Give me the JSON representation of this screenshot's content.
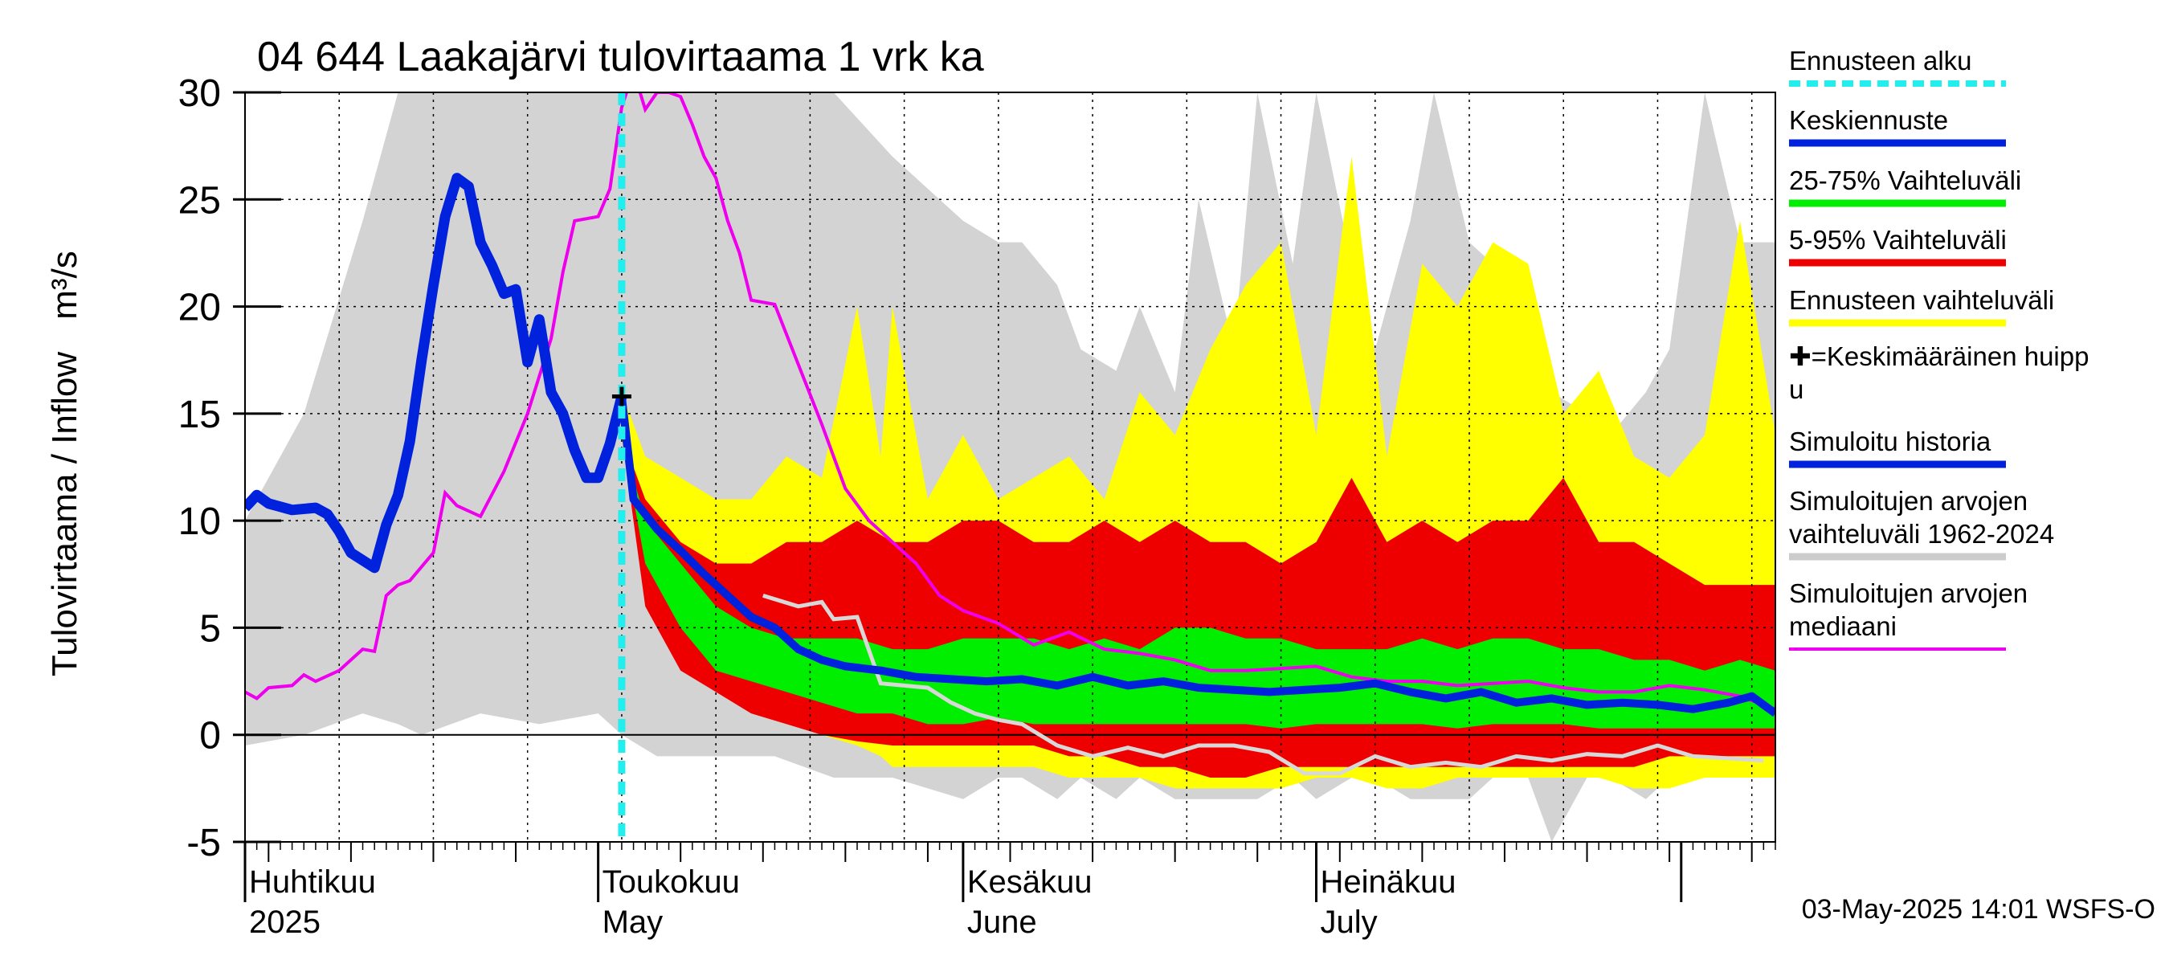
{
  "chart_data": {
    "type": "area",
    "title": "04 644 Laakajärvi tulovirtaama 1 vrk ka",
    "ylabel": "Tulovirtaama / Inflow",
    "yunit": "m³/s",
    "ylim": [
      -5,
      30
    ],
    "yticks": [
      -5,
      0,
      5,
      10,
      15,
      20,
      25,
      30
    ],
    "xlim": [
      "2025-04-01",
      "2025-08-09"
    ],
    "grid": true,
    "months": [
      {
        "fi": "Huhtikuu",
        "en": "2025",
        "start": "2025-04-01"
      },
      {
        "fi": "Toukokuu",
        "en": "May",
        "start": "2025-05-01"
      },
      {
        "fi": "Kesäkuu",
        "en": "June",
        "start": "2025-06-01"
      },
      {
        "fi": "Heinäkuu",
        "en": "July",
        "start": "2025-07-01"
      }
    ],
    "forecast_start": "2025-05-03",
    "mean_peak": {
      "date": "2025-05-03",
      "value": 15.8
    },
    "historical_range": {
      "dates": [
        "2025-04-01",
        "2025-04-06",
        "2025-04-11",
        "2025-04-14",
        "2025-04-16",
        "2025-04-21",
        "2025-04-26",
        "2025-05-01",
        "2025-05-03",
        "2025-05-06",
        "2025-05-11",
        "2025-05-16",
        "2025-05-21",
        "2025-05-26",
        "2025-06-01",
        "2025-06-04",
        "2025-06-06",
        "2025-06-09",
        "2025-06-11",
        "2025-06-14",
        "2025-06-16",
        "2025-06-19",
        "2025-06-21",
        "2025-06-24",
        "2025-06-26",
        "2025-06-29",
        "2025-07-01",
        "2025-07-04",
        "2025-07-06",
        "2025-07-09",
        "2025-07-11",
        "2025-07-14",
        "2025-07-16",
        "2025-07-19",
        "2025-07-21",
        "2025-07-24",
        "2025-07-26",
        "2025-07-29",
        "2025-07-31",
        "2025-08-03",
        "2025-08-06",
        "2025-08-09"
      ],
      "max": [
        10,
        15,
        24,
        30,
        30,
        30,
        30,
        30,
        30,
        30,
        30,
        30,
        30,
        27,
        24,
        23,
        23,
        21,
        18,
        17,
        20,
        16,
        25,
        18,
        30,
        22,
        30,
        22,
        18,
        24,
        30,
        23,
        22,
        19,
        16,
        15,
        14,
        16,
        18,
        30,
        23,
        23
      ],
      "min": [
        -0.5,
        0,
        1,
        0.5,
        0,
        1,
        0.5,
        1,
        0,
        -1,
        -1,
        -1,
        -2,
        -2,
        -3,
        -2,
        -2,
        -3,
        -2,
        -3,
        -2,
        -3,
        -3,
        -3,
        -3,
        -2,
        -3,
        -2,
        -2,
        -3,
        -3,
        -3,
        -2,
        -2,
        -5,
        -2,
        -2,
        -3,
        -2,
        -1,
        -2,
        -2
      ]
    },
    "forecast_range": {
      "dates": [
        "2025-05-03",
        "2025-05-05",
        "2025-05-08",
        "2025-05-11",
        "2025-05-14",
        "2025-05-17",
        "2025-05-20",
        "2025-05-23",
        "2025-05-25",
        "2025-05-26",
        "2025-05-29",
        "2025-06-01",
        "2025-06-04",
        "2025-06-07",
        "2025-06-10",
        "2025-06-13",
        "2025-06-16",
        "2025-06-19",
        "2025-06-22",
        "2025-06-25",
        "2025-06-28",
        "2025-07-01",
        "2025-07-04",
        "2025-07-07",
        "2025-07-10",
        "2025-07-13",
        "2025-07-16",
        "2025-07-19",
        "2025-07-22",
        "2025-07-25",
        "2025-07-28",
        "2025-07-31",
        "2025-08-03",
        "2025-08-06",
        "2025-08-09"
      ],
      "max": [
        16,
        13,
        12,
        11,
        11,
        13,
        12,
        20,
        13,
        20,
        11,
        14,
        11,
        12,
        13,
        11,
        16,
        14,
        18,
        21,
        23,
        14,
        27,
        13,
        22,
        20,
        23,
        22,
        15,
        17,
        13,
        12,
        14,
        24,
        14
      ],
      "min": [
        14,
        8,
        5,
        3,
        2,
        1,
        0,
        -0.5,
        -1,
        -1.5,
        -1.5,
        -1.5,
        -1.5,
        -1.5,
        -2,
        -2,
        -2,
        -2.5,
        -2.5,
        -2.5,
        -2.5,
        -2,
        -2,
        -2.5,
        -2.5,
        -2,
        -2,
        -2,
        -2,
        -2,
        -2.5,
        -2.5,
        -2,
        -2,
        -2
      ]
    },
    "band_5_95": {
      "dates": [
        "2025-05-03",
        "2025-05-05",
        "2025-05-08",
        "2025-05-11",
        "2025-05-14",
        "2025-05-17",
        "2025-05-20",
        "2025-05-23",
        "2025-05-26",
        "2025-05-29",
        "2025-06-01",
        "2025-06-04",
        "2025-06-07",
        "2025-06-10",
        "2025-06-13",
        "2025-06-16",
        "2025-06-19",
        "2025-06-22",
        "2025-06-25",
        "2025-06-28",
        "2025-07-01",
        "2025-07-04",
        "2025-07-07",
        "2025-07-10",
        "2025-07-13",
        "2025-07-16",
        "2025-07-19",
        "2025-07-22",
        "2025-07-25",
        "2025-07-28",
        "2025-07-31",
        "2025-08-03",
        "2025-08-06",
        "2025-08-09"
      ],
      "p95": [
        14,
        11,
        9,
        8,
        8,
        9,
        9,
        10,
        9,
        9,
        10,
        10,
        9,
        9,
        10,
        9,
        10,
        9,
        9,
        8,
        9,
        12,
        9,
        10,
        9,
        10,
        10,
        12,
        9,
        9,
        8,
        7,
        7,
        7
      ],
      "p05": [
        14,
        6,
        3,
        2,
        1,
        0.5,
        0,
        -0.3,
        -0.5,
        -0.5,
        -0.5,
        -0.5,
        -0.5,
        -1,
        -1,
        -1.5,
        -1.5,
        -2,
        -2,
        -1.5,
        -1.5,
        -1.5,
        -1.5,
        -1.5,
        -1.5,
        -1.5,
        -1.5,
        -1.5,
        -1.5,
        -1.5,
        -1,
        -1,
        -1,
        -1
      ]
    },
    "band_25_75": {
      "dates": [
        "2025-05-03",
        "2025-05-05",
        "2025-05-08",
        "2025-05-11",
        "2025-05-14",
        "2025-05-17",
        "2025-05-20",
        "2025-05-23",
        "2025-05-26",
        "2025-05-29",
        "2025-06-01",
        "2025-06-04",
        "2025-06-07",
        "2025-06-10",
        "2025-06-13",
        "2025-06-16",
        "2025-06-19",
        "2025-06-22",
        "2025-06-25",
        "2025-06-28",
        "2025-07-01",
        "2025-07-04",
        "2025-07-07",
        "2025-07-10",
        "2025-07-13",
        "2025-07-16",
        "2025-07-19",
        "2025-07-22",
        "2025-07-25",
        "2025-07-28",
        "2025-07-31",
        "2025-08-03",
        "2025-08-06",
        "2025-08-09"
      ],
      "p75": [
        14,
        10,
        8,
        6,
        5,
        4.5,
        4.5,
        4.5,
        4,
        4,
        4.5,
        4.5,
        4.5,
        4,
        4.5,
        4,
        5,
        5,
        4.5,
        4.5,
        4,
        4,
        4,
        4.5,
        4,
        4.5,
        4.5,
        4,
        4,
        3.5,
        3.5,
        3,
        3.5,
        3
      ],
      "p25": [
        14,
        8,
        5,
        3,
        2.5,
        2,
        1.5,
        1,
        1,
        0.5,
        0.5,
        0.8,
        0.5,
        0.5,
        0.5,
        0.5,
        0.5,
        0.5,
        0.5,
        0.3,
        0.5,
        0.5,
        0.5,
        0.5,
        0.3,
        0.5,
        0.5,
        0.5,
        0.3,
        0.3,
        0.3,
        0.3,
        0.3,
        0.3
      ]
    },
    "series": [
      {
        "name": "Keskiennuste",
        "color": "#0022dd",
        "dates": [
          "2025-05-03",
          "2025-05-04",
          "2025-05-06",
          "2025-05-08",
          "2025-05-10",
          "2025-05-12",
          "2025-05-14",
          "2025-05-16",
          "2025-05-18",
          "2025-05-20",
          "2025-05-22",
          "2025-05-25",
          "2025-05-28",
          "2025-05-31",
          "2025-06-03",
          "2025-06-06",
          "2025-06-09",
          "2025-06-12",
          "2025-06-15",
          "2025-06-18",
          "2025-06-21",
          "2025-06-24",
          "2025-06-27",
          "2025-06-30",
          "2025-07-03",
          "2025-07-06",
          "2025-07-09",
          "2025-07-12",
          "2025-07-15",
          "2025-07-18",
          "2025-07-21",
          "2025-07-24",
          "2025-07-27",
          "2025-07-30",
          "2025-08-02",
          "2025-08-05",
          "2025-08-07",
          "2025-08-09"
        ],
        "values": [
          15.8,
          11,
          9.6,
          8.6,
          7.5,
          6.5,
          5.5,
          5,
          4,
          3.5,
          3.2,
          3,
          2.7,
          2.6,
          2.5,
          2.6,
          2.3,
          2.7,
          2.3,
          2.5,
          2.2,
          2.1,
          2,
          2.1,
          2.2,
          2.4,
          2,
          1.7,
          2,
          1.5,
          1.7,
          1.4,
          1.5,
          1.4,
          1.2,
          1.5,
          1.8,
          1
        ]
      },
      {
        "name": "Simuloitu historia",
        "color": "#0022dd",
        "dates": [
          "2025-04-01",
          "2025-04-02",
          "2025-04-03",
          "2025-04-05",
          "2025-04-07",
          "2025-04-08",
          "2025-04-09",
          "2025-04-10",
          "2025-04-12",
          "2025-04-13",
          "2025-04-14",
          "2025-04-15",
          "2025-04-16",
          "2025-04-17",
          "2025-04-18",
          "2025-04-19",
          "2025-04-20",
          "2025-04-21",
          "2025-04-22",
          "2025-04-23",
          "2025-04-24",
          "2025-04-25",
          "2025-04-26",
          "2025-04-27",
          "2025-04-28",
          "2025-04-29",
          "2025-04-30",
          "2025-05-01",
          "2025-05-02",
          "2025-05-03"
        ],
        "values": [
          10.6,
          11.2,
          10.8,
          10.5,
          10.6,
          10.3,
          9.5,
          8.5,
          7.8,
          9.8,
          11.2,
          13.7,
          17.5,
          21,
          24.2,
          26,
          25.6,
          23,
          21.9,
          20.6,
          20.8,
          17.4,
          19.4,
          16,
          15,
          13.3,
          12,
          12,
          13.6,
          15.8
        ]
      },
      {
        "name": "Simuloitujen arvojen mediaani",
        "color": "#ee00ee",
        "dates": [
          "2025-04-01",
          "2025-04-02",
          "2025-04-03",
          "2025-04-05",
          "2025-04-06",
          "2025-04-07",
          "2025-04-09",
          "2025-04-10",
          "2025-04-11",
          "2025-04-12",
          "2025-04-13",
          "2025-04-14",
          "2025-04-15",
          "2025-04-17",
          "2025-04-18",
          "2025-04-19",
          "2025-04-21",
          "2025-04-23",
          "2025-04-25",
          "2025-04-27",
          "2025-04-28",
          "2025-04-29",
          "2025-05-01",
          "2025-05-02",
          "2025-05-03",
          "2025-05-04",
          "2025-05-05",
          "2025-05-06",
          "2025-05-07",
          "2025-05-08",
          "2025-05-09",
          "2025-05-10",
          "2025-05-11",
          "2025-05-12",
          "2025-05-13",
          "2025-05-14",
          "2025-05-16",
          "2025-05-18",
          "2025-05-20",
          "2025-05-22",
          "2025-05-24",
          "2025-05-26",
          "2025-05-28",
          "2025-05-30",
          "2025-06-01",
          "2025-06-04",
          "2025-06-07",
          "2025-06-10",
          "2025-06-13",
          "2025-06-16",
          "2025-06-19",
          "2025-06-22",
          "2025-06-25",
          "2025-06-28",
          "2025-07-01",
          "2025-07-04",
          "2025-07-07",
          "2025-07-10",
          "2025-07-13",
          "2025-07-16",
          "2025-07-19",
          "2025-07-22",
          "2025-07-25",
          "2025-07-28",
          "2025-07-31",
          "2025-08-03",
          "2025-08-06",
          "2025-08-09"
        ],
        "values": [
          2,
          1.7,
          2.2,
          2.3,
          2.8,
          2.5,
          3,
          3.5,
          4,
          3.9,
          6.5,
          7,
          7.2,
          8.5,
          11.3,
          10.7,
          10.2,
          12.3,
          15,
          18.5,
          21.6,
          24,
          24.2,
          25.5,
          29.3,
          31,
          29.2,
          30,
          30,
          29.8,
          28.5,
          27,
          26,
          24,
          22.5,
          20.3,
          20.1,
          17.3,
          14.5,
          11.5,
          10,
          9,
          8,
          6.5,
          5.8,
          5.2,
          4.2,
          4.8,
          4,
          3.8,
          3.5,
          3,
          3,
          3.1,
          3.2,
          2.7,
          2.5,
          2.5,
          2.3,
          2.4,
          2.5,
          2.2,
          2,
          2,
          2.3,
          2.1,
          1.8,
          1.2
        ]
      },
      {
        "name": "Median (history)",
        "color": "#d8d8d8",
        "dates": [
          "2025-05-15",
          "2025-05-18",
          "2025-05-20",
          "2025-05-21",
          "2025-05-23",
          "2025-05-25",
          "2025-05-27",
          "2025-05-29",
          "2025-05-31",
          "2025-06-02",
          "2025-06-04",
          "2025-06-06",
          "2025-06-09",
          "2025-06-12",
          "2025-06-15",
          "2025-06-18",
          "2025-06-21",
          "2025-06-24",
          "2025-06-27",
          "2025-06-30",
          "2025-07-03",
          "2025-07-06",
          "2025-07-09",
          "2025-07-12",
          "2025-07-15",
          "2025-07-18",
          "2025-07-21",
          "2025-07-24",
          "2025-07-27",
          "2025-07-30",
          "2025-08-02",
          "2025-08-05",
          "2025-08-08"
        ],
        "values": [
          6.5,
          6,
          6.2,
          5.4,
          5.5,
          2.4,
          2.3,
          2.2,
          1.5,
          1,
          0.7,
          0.5,
          -0.5,
          -1,
          -0.6,
          -1,
          -0.5,
          -0.5,
          -0.8,
          -1.8,
          -1.8,
          -1,
          -1.5,
          -1.3,
          -1.5,
          -1,
          -1.2,
          -0.9,
          -1,
          -0.5,
          -1,
          -1.1,
          -1.2
        ]
      }
    ],
    "legend": [
      {
        "label": "Ennusteen alku",
        "color": "#22eeee",
        "style": "dashed"
      },
      {
        "label": "Keskiennuste",
        "color": "#0022dd",
        "style": "solid"
      },
      {
        "label": "25-75% Vaihteluväli",
        "color": "#00ee00",
        "style": "solid"
      },
      {
        "label": "5-95% Vaihteluväli",
        "color": "#ee0000",
        "style": "solid"
      },
      {
        "label": "Ennusteen vaihteluväli",
        "color": "#ffff00",
        "style": "solid"
      },
      {
        "label": "✚=Keskimääräinen huipp",
        "label2": "u",
        "color": "#000000",
        "style": "none"
      },
      {
        "label": "Simuloitu historia",
        "color": "#0022dd",
        "style": "solid"
      },
      {
        "label": "Simuloitujen arvojen",
        "label2": "vaihteluväli 1962-2024",
        "color": "#cccccc",
        "style": "solid"
      },
      {
        "label": "Simuloitujen arvojen",
        "label2": "mediaani",
        "color": "#ee00ee",
        "style": "solid"
      }
    ],
    "footer": "03-May-2025 14:01 WSFS-O"
  }
}
